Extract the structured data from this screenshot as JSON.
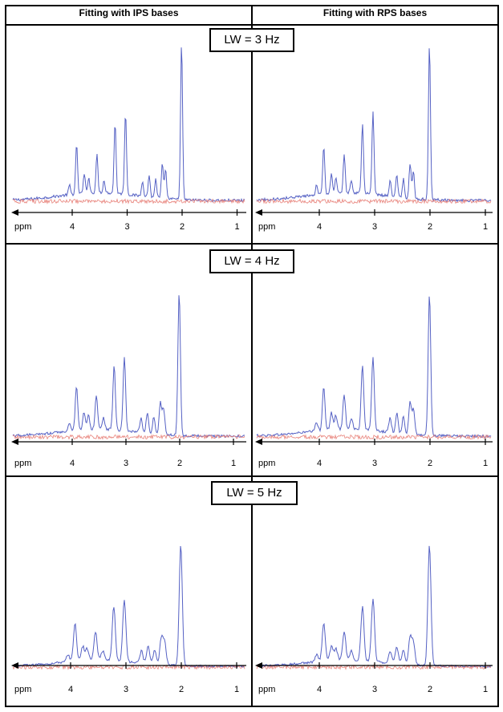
{
  "columns": [
    {
      "header": "Fitting with IPS bases"
    },
    {
      "header": "Fitting with RPS bases"
    }
  ],
  "rows": [
    {
      "label": "LW = 3 Hz",
      "linewidth_hz": 3
    },
    {
      "label": "LW = 4 Hz",
      "linewidth_hz": 4
    },
    {
      "label": "LW = 5 Hz",
      "linewidth_hz": 5
    }
  ],
  "axis": {
    "unit_label": "ppm",
    "ticks": [
      "4",
      "3",
      "2",
      "1"
    ],
    "tick_values": [
      4,
      3,
      2,
      1
    ],
    "direction": "decreasing-left-to-right"
  },
  "colors": {
    "spectrum": "#5561c4",
    "residual": "#e8827a",
    "border": "#000000"
  },
  "peaks_ppm": [
    {
      "ppm": 4.05,
      "rel": 0.06
    },
    {
      "ppm": 3.92,
      "rel": 0.31
    },
    {
      "ppm": 3.78,
      "rel": 0.12
    },
    {
      "ppm": 3.7,
      "rel": 0.1
    },
    {
      "ppm": 3.55,
      "rel": 0.24
    },
    {
      "ppm": 3.42,
      "rel": 0.08
    },
    {
      "ppm": 3.22,
      "rel": 0.45
    },
    {
      "ppm": 3.03,
      "rel": 0.52
    },
    {
      "ppm": 2.72,
      "rel": 0.1
    },
    {
      "ppm": 2.6,
      "rel": 0.14
    },
    {
      "ppm": 2.48,
      "rel": 0.12
    },
    {
      "ppm": 2.36,
      "rel": 0.22
    },
    {
      "ppm": 2.3,
      "rel": 0.18
    },
    {
      "ppm": 2.01,
      "rel": 1.0
    }
  ]
}
